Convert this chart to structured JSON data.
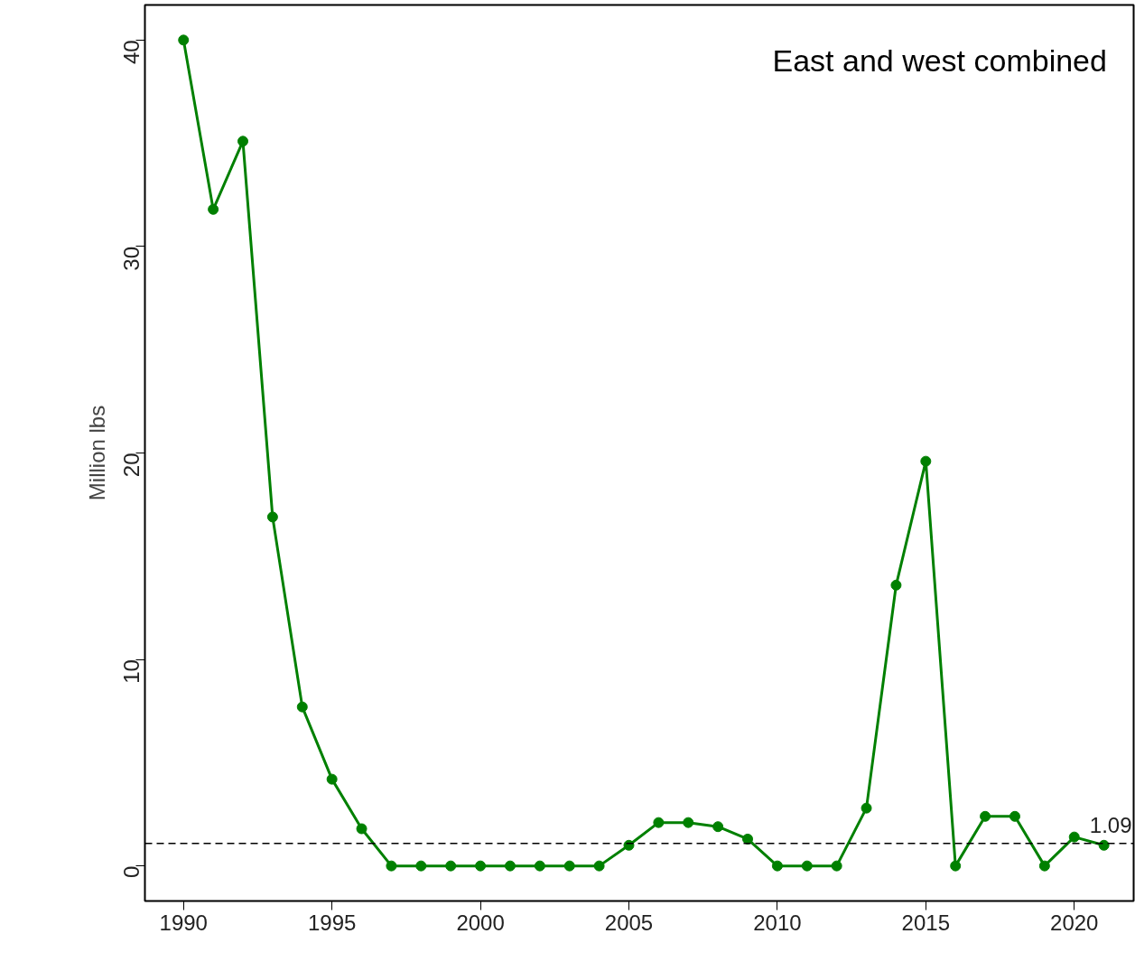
{
  "chart_data": {
    "type": "line",
    "ylabel": "Million lbs",
    "annotations": [
      "East and west combined"
    ],
    "x": [
      1990,
      1991,
      1992,
      1993,
      1994,
      1995,
      1996,
      1997,
      1998,
      1999,
      2000,
      2001,
      2002,
      2003,
      2004,
      2005,
      2006,
      2007,
      2008,
      2009,
      2010,
      2011,
      2012,
      2013,
      2014,
      2015,
      2016,
      2017,
      2018,
      2019,
      2020,
      2021
    ],
    "series": [
      {
        "color": "#008000",
        "values": [
          40,
          31.8,
          35.1,
          16.9,
          7.7,
          4.2,
          1.8,
          0,
          0,
          0,
          0,
          0,
          0,
          0,
          0,
          1.0,
          2.1,
          2.1,
          1.9,
          1.3,
          0,
          0,
          0,
          2.8,
          13.6,
          19.6,
          0,
          2.4,
          2.4,
          0,
          1.4,
          1.0
        ]
      }
    ],
    "xlim": [
      1988.7,
      2022
    ],
    "ylim": [
      -1.7,
      41.7
    ],
    "xticks": [
      1990,
      1995,
      2000,
      2005,
      2010,
      2015,
      2020
    ],
    "yticks": [
      0,
      10,
      20,
      30,
      40
    ],
    "ref_lines": [
      {
        "axis": "y",
        "value": 1.09,
        "label": "1.09",
        "color": "#000000",
        "line_style": "dashed"
      }
    ],
    "marker": "circle",
    "line_style": "solid",
    "grid": false
  }
}
